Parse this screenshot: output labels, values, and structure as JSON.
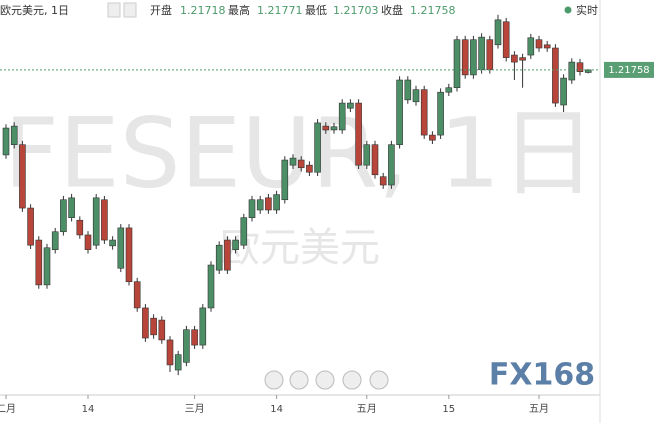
{
  "chart_data": {
    "type": "candlestick",
    "title": "欧元美元, 1日",
    "header": {
      "open_label": "开盘",
      "open": 1.21718,
      "high_label": "最高",
      "high": 1.21771,
      "low_label": "最低",
      "low": 1.21703,
      "close_label": "收盘",
      "close": 1.21758
    },
    "realtime_button": "实时",
    "watermark": "FESEUR, 1日",
    "watermark_sub": "欧元美元",
    "logo": "FX168",
    "last_price": 1.21758,
    "up_color": "#4c8f67",
    "down_color": "#b8453a",
    "ylim": [
      1.1668,
      1.2285
    ],
    "xticks": [
      {
        "value": 0,
        "label": "二月"
      },
      {
        "value": 10,
        "label": "14"
      },
      {
        "value": 23,
        "label": "三月"
      },
      {
        "value": 33,
        "label": "14"
      },
      {
        "value": 44,
        "label": "五月"
      },
      {
        "value": 54,
        "label": "15"
      },
      {
        "value": 65,
        "label": "五月"
      }
    ],
    "open": [
      1.2043,
      1.2059,
      1.2059,
      1.196,
      1.191,
      1.184,
      1.1895,
      1.1923,
      1.1945,
      1.1941,
      1.1918,
      1.1902,
      1.1973,
      1.1901,
      1.1866,
      1.1929,
      1.1845,
      1.1804,
      1.1788,
      1.1785,
      1.1754,
      1.1707,
      1.1719,
      1.177,
      1.1746,
      1.1804,
      1.1863,
      1.191,
      1.1895,
      1.1902,
      1.1945,
      1.1957,
      1.1976,
      1.1957,
      1.1973,
      1.2027,
      1.2035,
      1.2027,
      1.2016,
      1.2088,
      1.2082,
      1.2082,
      1.2116,
      1.2124,
      1.2027,
      1.2059,
      1.2009,
      1.1996,
      1.2059,
      1.2129,
      1.2126,
      1.2145,
      1.2074,
      1.2074,
      1.2141,
      1.2148,
      1.2223,
      1.2168,
      1.2176,
      1.2223,
      1.2215,
      1.2251,
      1.2199,
      1.2195,
      1.2199,
      1.2223,
      1.2215,
      1.221,
      1.2121,
      1.216,
      1.2187,
      1.21718
    ],
    "high": [
      1.2091,
      1.2094,
      1.2065,
      1.1966,
      1.1916,
      1.1904,
      1.1929,
      1.1979,
      1.1982,
      1.1947,
      1.1924,
      1.1982,
      1.1979,
      1.1916,
      1.1935,
      1.1935,
      1.1851,
      1.181,
      1.1794,
      1.1791,
      1.176,
      1.1737,
      1.1776,
      1.1776,
      1.181,
      1.1877,
      1.1908,
      1.1916,
      1.1916,
      1.1951,
      1.1979,
      1.1979,
      1.1982,
      1.1987,
      1.2041,
      1.2044,
      1.2041,
      1.2033,
      1.2099,
      1.2094,
      1.2093,
      1.213,
      1.213,
      1.213,
      1.2065,
      1.2065,
      1.2015,
      1.2065,
      1.2166,
      1.2166,
      1.2151,
      1.2151,
      1.208,
      1.2147,
      1.2154,
      1.2229,
      1.2229,
      1.2229,
      1.2233,
      1.2229,
      1.2262,
      1.2257,
      1.2205,
      1.2201,
      1.2232,
      1.2229,
      1.2221,
      1.2216,
      1.2169,
      1.2194,
      1.2193,
      1.21771
    ],
    "low": [
      1.2037,
      1.2053,
      1.1954,
      1.1896,
      1.1834,
      1.1834,
      1.1889,
      1.1917,
      1.1939,
      1.1912,
      1.1889,
      1.1896,
      1.1904,
      1.1895,
      1.186,
      1.1839,
      1.1798,
      1.1751,
      1.1756,
      1.1748,
      1.1704,
      1.1699,
      1.1713,
      1.174,
      1.174,
      1.1798,
      1.1857,
      1.1857,
      1.1889,
      1.1896,
      1.1939,
      1.1951,
      1.1951,
      1.1951,
      1.1967,
      1.2021,
      1.2017,
      1.201,
      1.201,
      1.2076,
      1.2076,
      1.2076,
      1.211,
      1.2021,
      1.2021,
      1.2006,
      1.199,
      1.199,
      1.2053,
      1.2123,
      1.212,
      1.2068,
      1.206,
      1.2068,
      1.2135,
      1.2142,
      1.2162,
      1.2162,
      1.217,
      1.217,
      1.2209,
      1.2189,
      1.216,
      1.2148,
      1.2193,
      1.2204,
      1.2204,
      1.2118,
      1.211,
      1.2154,
      1.2167,
      1.21703
    ],
    "close": [
      1.2085,
      1.2088,
      1.196,
      1.1902,
      1.184,
      1.1898,
      1.1923,
      1.1973,
      1.1976,
      1.1918,
      1.1895,
      1.1976,
      1.191,
      1.191,
      1.1929,
      1.1845,
      1.1804,
      1.1757,
      1.1762,
      1.1754,
      1.1715,
      1.1731,
      1.177,
      1.1746,
      1.1804,
      1.1871,
      1.1902,
      1.1863,
      1.191,
      1.1945,
      1.1973,
      1.1973,
      1.1957,
      1.1981,
      1.2035,
      1.2038,
      1.2023,
      1.2016,
      1.2093,
      1.2082,
      1.2087,
      1.2124,
      1.2124,
      1.2027,
      1.2059,
      1.2012,
      1.1996,
      1.2059,
      1.216,
      1.216,
      1.2145,
      1.2074,
      1.2066,
      1.2141,
      1.2148,
      1.2223,
      1.2168,
      1.2223,
      1.2227,
      1.2176,
      1.2254,
      1.2195,
      1.2188,
      1.2191,
      1.2226,
      1.221,
      1.221,
      1.2124,
      1.2163,
      1.2188,
      1.2173,
      1.21758
    ]
  }
}
